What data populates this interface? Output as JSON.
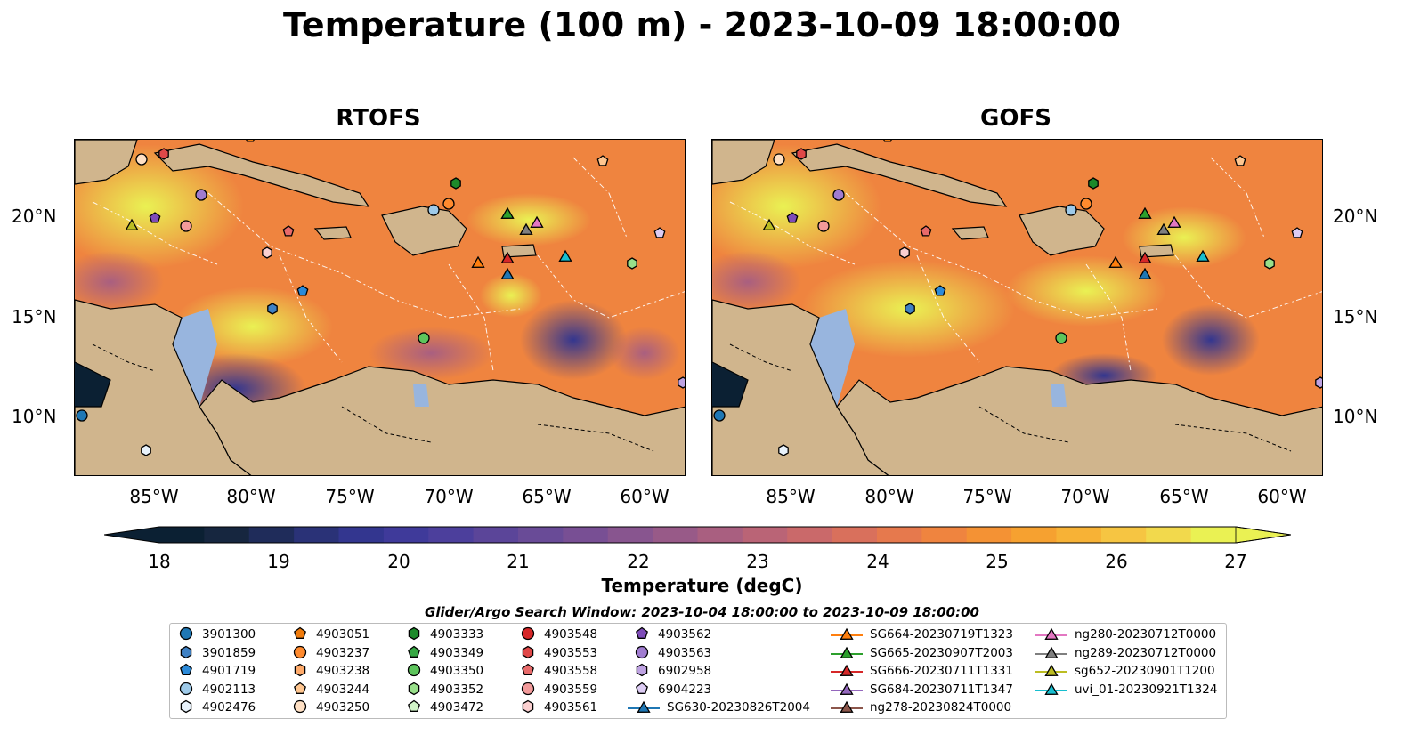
{
  "title": "Temperature (100 m) - 2023-10-09 18:00:00",
  "panels": [
    {
      "name": "RTOFS"
    },
    {
      "name": "GOFS"
    }
  ],
  "lon_labels": [
    "85°W",
    "80°W",
    "75°W",
    "70°W",
    "65°W",
    "60°W"
  ],
  "lat_labels": [
    "20°N",
    "15°N",
    "10°N"
  ],
  "colorbar": {
    "ticks": [
      "18",
      "19",
      "20",
      "21",
      "22",
      "23",
      "24",
      "25",
      "26",
      "27"
    ],
    "label": "Temperature (degC)",
    "colors": [
      "#0b2033",
      "#16263f",
      "#1f2c5a",
      "#2a3277",
      "#33368f",
      "#3f3a9a",
      "#4c3f9c",
      "#5b4599",
      "#694b97",
      "#784f94",
      "#88558f",
      "#985a88",
      "#a95f80",
      "#ba6476",
      "#ca696a",
      "#d9705c",
      "#e6794d",
      "#ef843f",
      "#f49234",
      "#f6a130",
      "#f7b236",
      "#f6c542",
      "#f2d94c",
      "#eaf153"
    ]
  },
  "legend": {
    "title": "Glider/Argo Search Window: 2023-10-04 18:00:00 to 2023-10-09 18:00:00",
    "items": [
      {
        "label": "3901300",
        "marker": "circle",
        "color": "#1f77b4"
      },
      {
        "label": "3901859",
        "marker": "hexagon",
        "color": "#3f81c4"
      },
      {
        "label": "4901719",
        "marker": "pentagon",
        "color": "#2b8ad9"
      },
      {
        "label": "4902113",
        "marker": "circle",
        "color": "#9ecae9"
      },
      {
        "label": "4902476",
        "marker": "hexagon",
        "color": "#e8f2fb"
      },
      {
        "label": "4903051",
        "marker": "pentagon",
        "color": "#f07b0c"
      },
      {
        "label": "4903237",
        "marker": "circle",
        "color": "#ff8a2e"
      },
      {
        "label": "4903238",
        "marker": "hexagon",
        "color": "#ffab6b"
      },
      {
        "label": "4903244",
        "marker": "pentagon",
        "color": "#ffc690"
      },
      {
        "label": "4903250",
        "marker": "circle",
        "color": "#ffe0c4"
      },
      {
        "label": "4903333",
        "marker": "hexagon",
        "color": "#1c8a2a"
      },
      {
        "label": "4903349",
        "marker": "pentagon",
        "color": "#36a843"
      },
      {
        "label": "4903350",
        "marker": "circle",
        "color": "#5dc55c"
      },
      {
        "label": "4903352",
        "marker": "hexagon",
        "color": "#98df8a"
      },
      {
        "label": "4903472",
        "marker": "pentagon",
        "color": "#d2f5c8"
      },
      {
        "label": "4903548",
        "marker": "circle",
        "color": "#d62728"
      },
      {
        "label": "4903553",
        "marker": "hexagon",
        "color": "#e04848"
      },
      {
        "label": "4903558",
        "marker": "pentagon",
        "color": "#e86a6a"
      },
      {
        "label": "4903559",
        "marker": "circle",
        "color": "#f29a9a"
      },
      {
        "label": "4903561",
        "marker": "hexagon",
        "color": "#fbd0d0"
      },
      {
        "label": "4903562",
        "marker": "pentagon",
        "color": "#7e4cb8"
      },
      {
        "label": "4903563",
        "marker": "circle",
        "color": "#a07cd0"
      },
      {
        "label": "6902958",
        "marker": "hexagon",
        "color": "#bea2e2"
      },
      {
        "label": "6904223",
        "marker": "pentagon",
        "color": "#ddccf4"
      },
      {
        "label": "SG630-20230826T2004",
        "marker": "triangle",
        "color": "#1f77b4"
      },
      {
        "label": "SG664-20230719T1323",
        "marker": "triangle",
        "color": "#ff7f0e"
      },
      {
        "label": "SG665-20230907T2003",
        "marker": "triangle",
        "color": "#2ca02c"
      },
      {
        "label": "SG666-20230711T1331",
        "marker": "triangle",
        "color": "#d62728"
      },
      {
        "label": "SG684-20230711T1347",
        "marker": "triangle",
        "color": "#9467bd"
      },
      {
        "label": "ng278-20230824T0000",
        "marker": "triangle",
        "color": "#8c564b"
      },
      {
        "label": "ng280-20230712T0000",
        "marker": "triangle",
        "color": "#e377c2"
      },
      {
        "label": "ng289-20230712T0000",
        "marker": "triangle",
        "color": "#7f7f7f"
      },
      {
        "label": "sg652-20230901T1200",
        "marker": "triangle",
        "color": "#bcbd22"
      },
      {
        "label": "uvi_01-20230921T1324",
        "marker": "triangle",
        "color": "#17becf"
      }
    ]
  }
}
